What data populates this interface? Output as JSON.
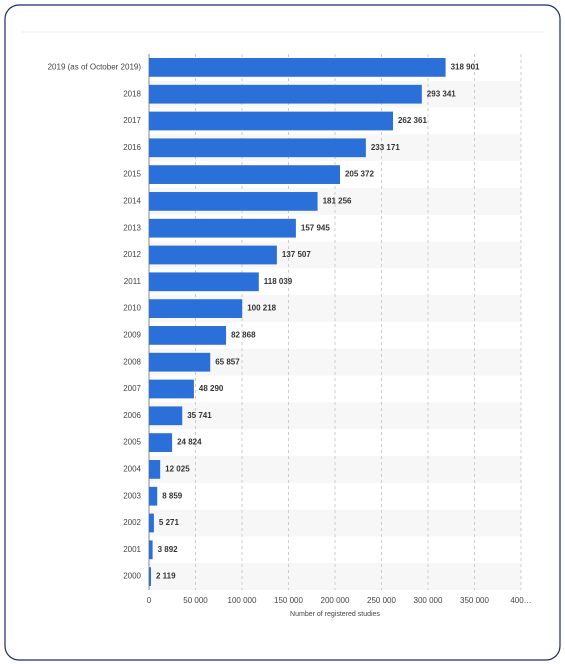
{
  "chart_data": {
    "type": "bar",
    "orientation": "horizontal",
    "x_label": "Number of registered studies",
    "categories": [
      "2019 (as of October 2019)",
      "2018",
      "2017",
      "2016",
      "2015",
      "2014",
      "2013",
      "2012",
      "2011",
      "2010",
      "2009",
      "2008",
      "2007",
      "2006",
      "2005",
      "2004",
      "2003",
      "2002",
      "2001",
      "2000"
    ],
    "values": [
      318901,
      293341,
      262361,
      233171,
      205372,
      181256,
      157945,
      137507,
      118039,
      100218,
      82868,
      65857,
      48290,
      35741,
      24824,
      12025,
      8859,
      5271,
      3892,
      2119
    ],
    "value_labels": [
      "318 901",
      "293 341",
      "262 361",
      "233 171",
      "205 372",
      "181 256",
      "157 945",
      "137 507",
      "118 039",
      "100 218",
      "82 868",
      "65 857",
      "48 290",
      "35 741",
      "24 824",
      "12 025",
      "8 859",
      "5 271",
      "3 892",
      "2 119"
    ],
    "color": "#2b6fd8",
    "xlim": [
      0,
      400000
    ],
    "xticks": [
      0,
      {
        "value": 50000,
        "label": "50 000"
      },
      {
        "value": 100000,
        "label": "100 000"
      },
      {
        "value": 150000,
        "label": "150 000"
      },
      {
        "value": 200000,
        "label": "200 000"
      },
      {
        "value": 250000,
        "label": "250 000"
      },
      {
        "value": 300000,
        "label": "300 000"
      },
      {
        "value": 350000,
        "label": "350 000"
      },
      {
        "value": 400000,
        "label": "400…"
      }
    ],
    "grid": true
  }
}
